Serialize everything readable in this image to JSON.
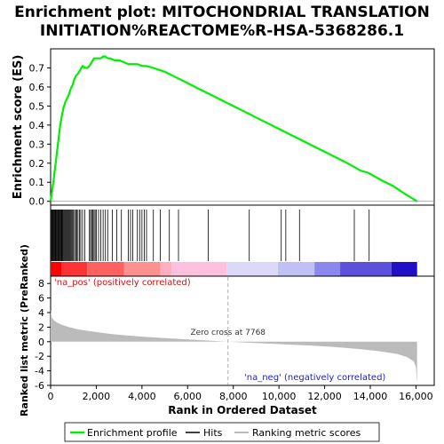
{
  "colors": {
    "enrichment": "#00ee00",
    "hits": "#000000",
    "metric": "#bbbbbb",
    "pos_label": "#d01010",
    "neg_label": "#2020cc",
    "zero_line": "#aaaaaa"
  },
  "chart_data": [
    {
      "panel": "enrichment-plot",
      "type": "line",
      "title": "Enrichment plot: MITOCHONDRIAL TRANSLATION INITIATION%REACTOME%R-HSA-5368286.1",
      "title_line1": "Enrichment plot: MITOCHONDRIAL TRANSLATION",
      "title_line2": "INITIATION%REACTOME%R-HSA-5368286.1",
      "ylabel": "Enrichment score (ES)",
      "xlim": [
        0,
        16800
      ],
      "ylim": [
        -0.02,
        0.8
      ],
      "yticks": [
        0.0,
        0.1,
        0.2,
        0.3,
        0.4,
        0.5,
        0.6,
        0.7
      ],
      "ytick_labels": [
        "0.0",
        "0.1",
        "0.2",
        "0.3",
        "0.4",
        "0.5",
        "0.6",
        "0.7"
      ],
      "grid": false,
      "series": [
        {
          "name": "Enrichment profile",
          "x": [
            0,
            60,
            120,
            180,
            240,
            300,
            360,
            420,
            480,
            560,
            640,
            720,
            800,
            880,
            960,
            1040,
            1120,
            1200,
            1300,
            1400,
            1500,
            1600,
            1700,
            1800,
            1900,
            2000,
            2100,
            2200,
            2300,
            2400,
            2500,
            2600,
            2800,
            3000,
            3200,
            3400,
            3600,
            3800,
            4000,
            4200,
            4500,
            5000,
            5500,
            6000,
            6500,
            7000,
            7500,
            8000,
            8500,
            9000,
            9500,
            10000,
            10500,
            11000,
            11500,
            12000,
            12500,
            13000,
            13300,
            13600,
            13900,
            14200,
            14500,
            15000,
            15500,
            16050
          ],
          "y": [
            0.0,
            0.05,
            0.1,
            0.16,
            0.22,
            0.28,
            0.34,
            0.4,
            0.44,
            0.49,
            0.52,
            0.54,
            0.56,
            0.59,
            0.61,
            0.64,
            0.66,
            0.67,
            0.69,
            0.71,
            0.7,
            0.7,
            0.71,
            0.73,
            0.75,
            0.75,
            0.75,
            0.75,
            0.76,
            0.76,
            0.75,
            0.75,
            0.74,
            0.74,
            0.73,
            0.72,
            0.72,
            0.72,
            0.71,
            0.71,
            0.7,
            0.68,
            0.65,
            0.62,
            0.59,
            0.56,
            0.53,
            0.5,
            0.47,
            0.44,
            0.41,
            0.38,
            0.35,
            0.32,
            0.29,
            0.26,
            0.23,
            0.2,
            0.18,
            0.16,
            0.15,
            0.13,
            0.11,
            0.08,
            0.04,
            0.0
          ]
        }
      ]
    },
    {
      "panel": "hits-bar",
      "type": "scatter",
      "series": [
        {
          "name": "Hits",
          "x": [
            20,
            50,
            80,
            110,
            140,
            170,
            200,
            230,
            260,
            290,
            320,
            350,
            380,
            410,
            440,
            470,
            500,
            530,
            560,
            600,
            640,
            680,
            720,
            760,
            800,
            840,
            880,
            920,
            960,
            1000,
            1050,
            1100,
            1150,
            1200,
            1260,
            1320,
            1400,
            1500,
            1700,
            1750,
            1800,
            1850,
            1900,
            1950,
            2000,
            2100,
            2200,
            2300,
            2400,
            2500,
            2700,
            2900,
            3100,
            3400,
            3500,
            3600,
            3800,
            3900,
            4000,
            4100,
            4200,
            4500,
            4800,
            5200,
            5600,
            6900,
            8700,
            10100,
            10300,
            10900,
            13300,
            13950
          ]
        }
      ]
    },
    {
      "panel": "ranked-metric",
      "type": "area",
      "xlabel": "Rank in Ordered Dataset",
      "ylabel": "Ranked list metric (PreRanked)",
      "xlim": [
        0,
        16800
      ],
      "ylim": [
        -6,
        9
      ],
      "yticks": [
        -6,
        -4,
        -2,
        0,
        2,
        4,
        6,
        8
      ],
      "ytick_labels": [
        "-6",
        "-4",
        "-2",
        "0",
        "2",
        "4",
        "6",
        "8"
      ],
      "xticks": [
        0,
        2000,
        4000,
        6000,
        8000,
        10000,
        12000,
        14000,
        16000
      ],
      "xtick_labels": [
        "0",
        "2,000",
        "4,000",
        "6,000",
        "8,000",
        "10,000",
        "12,000",
        "14,000",
        "16,000"
      ],
      "grid": false,
      "zero_cross": 7768,
      "zero_cross_label": "Zero cross at 7768",
      "pos_label": "'na_pos' (positively correlated)",
      "neg_label": "'na_neg' (negatively correlated)",
      "series": [
        {
          "name": "Ranking metric scores",
          "x": [
            0,
            20,
            60,
            150,
            300,
            500,
            800,
            1200,
            1700,
            2300,
            3000,
            4000,
            5000,
            6000,
            7000,
            7768,
            8500,
            9500,
            10500,
            11500,
            12500,
            13500,
            14500,
            15200,
            15600,
            15900,
            16000,
            16050
          ],
          "y": [
            4.4,
            3.8,
            3.3,
            2.9,
            2.6,
            2.3,
            2.0,
            1.7,
            1.45,
            1.2,
            0.95,
            0.7,
            0.5,
            0.32,
            0.15,
            0.0,
            -0.12,
            -0.25,
            -0.4,
            -0.55,
            -0.75,
            -1.0,
            -1.35,
            -1.7,
            -2.1,
            -2.7,
            -3.5,
            -5.6
          ]
        }
      ]
    }
  ],
  "legend": {
    "items": [
      {
        "label": "Enrichment profile"
      },
      {
        "label": "Hits"
      },
      {
        "label": "Ranking metric scores"
      }
    ]
  }
}
